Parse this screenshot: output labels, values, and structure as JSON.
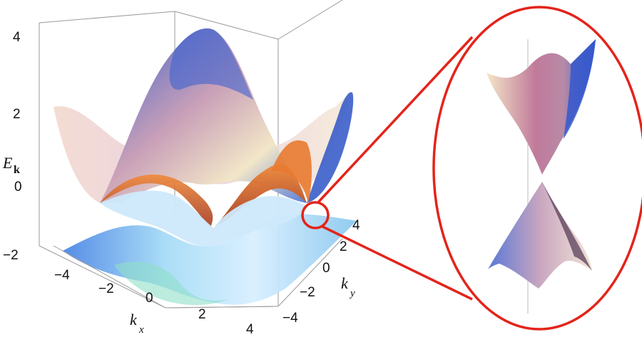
{
  "chart_data": {
    "type": "surface3d",
    "title": "",
    "xlabel": {
      "main": "k",
      "sub": "x"
    },
    "ylabel": {
      "main": "k",
      "sub": "y"
    },
    "zlabel": {
      "main": "E",
      "sub": "k"
    },
    "xlim": [
      -4.7,
      4.7
    ],
    "ylim": [
      -4.7,
      4.7
    ],
    "zlim": [
      -2.3,
      4.3
    ],
    "x_ticks": [
      "−4",
      "−2",
      "0",
      "2",
      "4"
    ],
    "y_ticks": [
      "−4",
      "−2",
      "0",
      "2",
      "4"
    ],
    "z_ticks": [
      "−2",
      "0",
      "2",
      "4"
    ],
    "series": [
      {
        "band": "upper",
        "colors": [
          "#3a5fcd",
          "#c9a0b8",
          "#f2e6c8",
          "#e07030"
        ]
      },
      {
        "band": "lower",
        "colors": [
          "#4a7fe0",
          "#a8dcf5",
          "#e8f4ff",
          "#d06030"
        ]
      }
    ],
    "inset": {
      "description_visible": false,
      "highlight_color": "#e3241b"
    }
  }
}
